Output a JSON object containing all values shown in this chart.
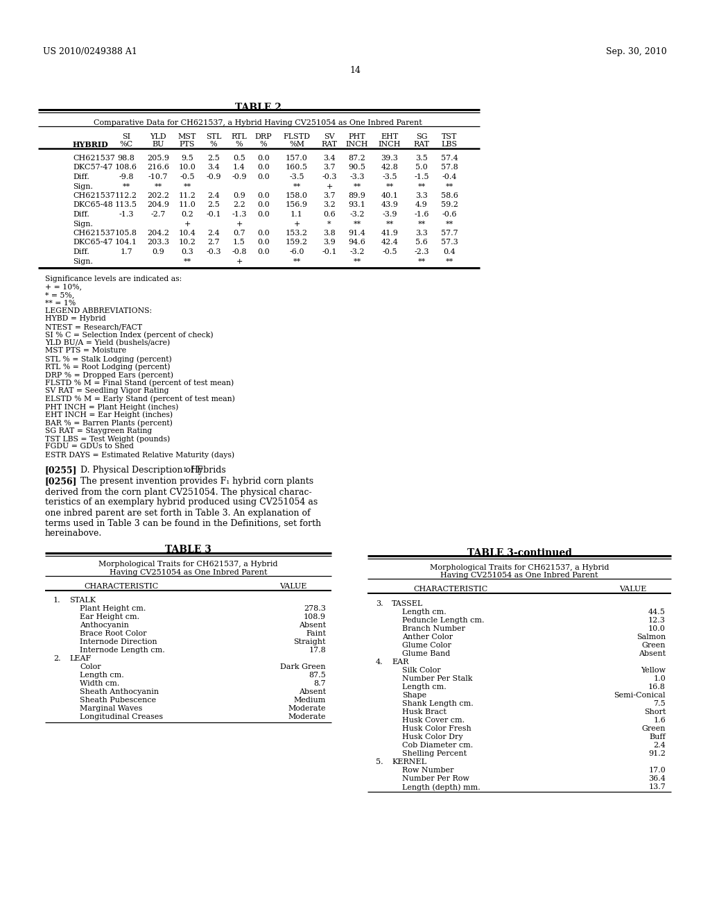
{
  "header_left": "US 2010/0249388 A1",
  "header_right": "Sep. 30, 2010",
  "page_number": "14",
  "table2_title": "TABLE 2",
  "table2_subtitle": "Comparative Data for CH621537, a Hybrid Having CV251054 as One Inbred Parent",
  "table2_col_headers_line1": [
    "",
    "SI",
    "YLD",
    "MST",
    "STL",
    "RTL",
    "DRP",
    "FLSTD",
    "SV",
    "PHT",
    "EHT",
    "SG",
    "TST"
  ],
  "table2_col_headers_line2": [
    "HYBRID",
    "%C",
    "BU",
    "PTS",
    "%",
    "%",
    "%",
    "%M",
    "RAT",
    "INCH",
    "INCH",
    "RAT",
    "LBS"
  ],
  "table2_rows": [
    [
      "CH621537",
      "98.8",
      "205.9",
      "9.5",
      "2.5",
      "0.5",
      "0.0",
      "157.0",
      "3.4",
      "87.2",
      "39.3",
      "3.5",
      "57.4"
    ],
    [
      "DKC57-47",
      "108.6",
      "216.6",
      "10.0",
      "3.4",
      "1.4",
      "0.0",
      "160.5",
      "3.7",
      "90.5",
      "42.8",
      "5.0",
      "57.8"
    ],
    [
      "Diff.",
      "-9.8",
      "-10.7",
      "-0.5",
      "-0.9",
      "-0.9",
      "0.0",
      "-3.5",
      "-0.3",
      "-3.3",
      "-3.5",
      "-1.5",
      "-0.4"
    ],
    [
      "Sign.",
      "**",
      "**",
      "**",
      "",
      "",
      "",
      "**",
      "+",
      "**",
      "**",
      "**",
      "**"
    ],
    [
      "CH621537",
      "112.2",
      "202.2",
      "11.2",
      "2.4",
      "0.9",
      "0.0",
      "158.0",
      "3.7",
      "89.9",
      "40.1",
      "3.3",
      "58.6"
    ],
    [
      "DKC65-48",
      "113.5",
      "204.9",
      "11.0",
      "2.5",
      "2.2",
      "0.0",
      "156.9",
      "3.2",
      "93.1",
      "43.9",
      "4.9",
      "59.2"
    ],
    [
      "Diff.",
      "-1.3",
      "-2.7",
      "0.2",
      "-0.1",
      "-1.3",
      "0.0",
      "1.1",
      "0.6",
      "-3.2",
      "-3.9",
      "-1.6",
      "-0.6"
    ],
    [
      "Sign.",
      "",
      "",
      "+",
      "",
      "+",
      "",
      "+",
      "*",
      "**",
      "**",
      "**",
      "**"
    ],
    [
      "CH621537",
      "105.8",
      "204.2",
      "10.4",
      "2.4",
      "0.7",
      "0.0",
      "153.2",
      "3.8",
      "91.4",
      "41.9",
      "3.3",
      "57.7"
    ],
    [
      "DKC65-47",
      "104.1",
      "203.3",
      "10.2",
      "2.7",
      "1.5",
      "0.0",
      "159.2",
      "3.9",
      "94.6",
      "42.4",
      "5.6",
      "57.3"
    ],
    [
      "Diff.",
      "1.7",
      "0.9",
      "0.3",
      "-0.3",
      "-0.8",
      "0.0",
      "-6.0",
      "-0.1",
      "-3.2",
      "-0.5",
      "-2.3",
      "0.4"
    ],
    [
      "Sign.",
      "",
      "",
      "**",
      "",
      "+",
      "",
      "**",
      "",
      "**",
      "",
      "**",
      "**"
    ]
  ],
  "significance_text": [
    "Significance levels are indicated as:",
    "+ = 10%,",
    "* = 5%,",
    "** = 1%",
    "LEGEND ABBREVIATIONS:",
    "HYBD = Hybrid",
    "NTEST = Research/FACT",
    "SI % C = Selection Index (percent of check)",
    "YLD BU/A = Yield (bushels/acre)",
    "MST PTS = Moisture",
    "STL % = Stalk Lodging (percent)",
    "RTL % = Root Lodging (percent)",
    "DRP % = Dropped Ears (percent)",
    "FLSTD % M = Final Stand (percent of test mean)",
    "SV RAT = Seedling Vigor Rating",
    "ELSTD % M = Early Stand (percent of test mean)",
    "PHT INCH = Plant Height (inches)",
    "EHT INCH = Ear Height (inches)",
    "BAR % = Barren Plants (percent)",
    "SG RAT = Staygreen Rating",
    "TST LBS = Test Weight (pounds)",
    "FGDU = GDUs to Shed",
    "ESTR DAYS = Estimated Relative Maturity (days)"
  ],
  "para255_label": "[0255]",
  "para255_heading": "D. Physical Description of F",
  "para255_sub": "1",
  "para255_tail": " Hybrids",
  "para256_label": "[0256]",
  "para256_lines": [
    "The present invention provides F₁ hybrid corn plants",
    "derived from the corn plant CV251054. The physical charac-",
    "teristics of an exemplary hybrid produced using CV251054 as",
    "one inbred parent are set forth in Table 3. An explanation of",
    "terms used in Table 3 can be found in the Definitions, set forth",
    "hereinabove."
  ],
  "table3_title": "TABLE 3",
  "table3_subtitle1": "Morphological Traits for CH621537, a Hybrid",
  "table3_subtitle2": "Having CV251054 as One Inbred Parent",
  "table3_rows": [
    [
      "1.",
      "STALK",
      ""
    ],
    [
      "",
      "Plant Height cm.",
      "278.3"
    ],
    [
      "",
      "Ear Height cm.",
      "108.9"
    ],
    [
      "",
      "Anthocyanin",
      "Absent"
    ],
    [
      "",
      "Brace Root Color",
      "Faint"
    ],
    [
      "",
      "Internode Direction",
      "Straight"
    ],
    [
      "",
      "Internode Length cm.",
      "17.8"
    ],
    [
      "2.",
      "LEAF",
      ""
    ],
    [
      "",
      "Color",
      "Dark Green"
    ],
    [
      "",
      "Length cm.",
      "87.5"
    ],
    [
      "",
      "Width cm.",
      "8.7"
    ],
    [
      "",
      "Sheath Anthocyanin",
      "Absent"
    ],
    [
      "",
      "Sheath Pubescence",
      "Medium"
    ],
    [
      "",
      "Marginal Waves",
      "Moderate"
    ],
    [
      "",
      "Longitudinal Creases",
      "Moderate"
    ]
  ],
  "table3cont_title": "TABLE 3-continued",
  "table3cont_subtitle1": "Morphological Traits for CH621537, a Hybrid",
  "table3cont_subtitle2": "Having CV251054 as One Inbred Parent",
  "table3cont_rows": [
    [
      "3.",
      "TASSEL",
      ""
    ],
    [
      "",
      "Length cm.",
      "44.5"
    ],
    [
      "",
      "Peduncle Length cm.",
      "12.3"
    ],
    [
      "",
      "Branch Number",
      "10.0"
    ],
    [
      "",
      "Anther Color",
      "Salmon"
    ],
    [
      "",
      "Glume Color",
      "Green"
    ],
    [
      "",
      "Glume Band",
      "Absent"
    ],
    [
      "4.",
      "EAR",
      ""
    ],
    [
      "",
      "Silk Color",
      "Yellow"
    ],
    [
      "",
      "Number Per Stalk",
      "1.0"
    ],
    [
      "",
      "Length cm.",
      "16.8"
    ],
    [
      "",
      "Shape",
      "Semi-Conical"
    ],
    [
      "",
      "Shank Length cm.",
      "7.5"
    ],
    [
      "",
      "Husk Bract",
      "Short"
    ],
    [
      "",
      "Husk Cover cm.",
      "1.6"
    ],
    [
      "",
      "Husk Color Fresh",
      "Green"
    ],
    [
      "",
      "Husk Color Dry",
      "Buff"
    ],
    [
      "",
      "Cob Diameter cm.",
      "2.4"
    ],
    [
      "",
      "Shelling Percent",
      "91.2"
    ],
    [
      "5.",
      "KERNEL",
      ""
    ],
    [
      "",
      "Row Number",
      "17.0"
    ],
    [
      "",
      "Number Per Row",
      "36.4"
    ],
    [
      "",
      "Length (depth) mm.",
      "13.7"
    ]
  ]
}
